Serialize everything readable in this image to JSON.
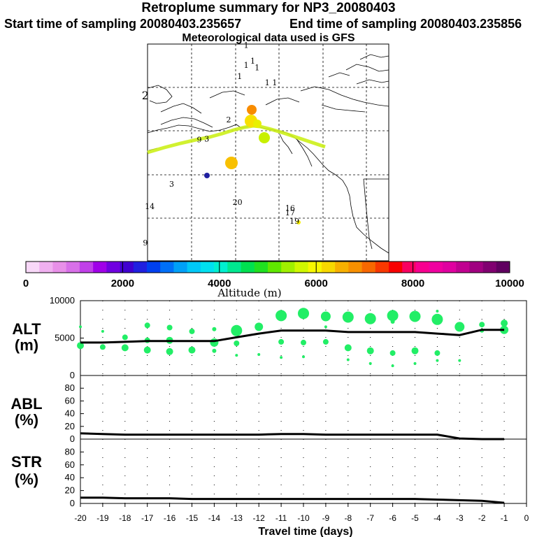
{
  "header": {
    "title": "Retroplume summary for NP3_20080403",
    "start_label": "Start time of sampling 20080403.235657",
    "end_label": "End time of sampling 20080403.235856",
    "met_label": "Meteorological data used is GFS"
  },
  "colors": {
    "altitude_scale": [
      "#f8d8f8",
      "#f0b0f0",
      "#e890e8",
      "#d870e8",
      "#c040e8",
      "#a000e8",
      "#7000e0",
      "#4000d0",
      "#2020e0",
      "#0040f0",
      "#0070f8",
      "#00a0f8",
      "#00c8f8",
      "#00e0f0",
      "#00f0d0",
      "#00e890",
      "#00e050",
      "#20e020",
      "#60e800",
      "#a0f000",
      "#d0f800",
      "#f8f800",
      "#f8d800",
      "#f8b000",
      "#f89000",
      "#f86800",
      "#f83800",
      "#f80000",
      "#f80060",
      "#f80090",
      "#f000a0",
      "#e000a0",
      "#c00090",
      "#a00080",
      "#800070",
      "#600060"
    ],
    "alt_dot": "#22ee66",
    "line": "#000000"
  },
  "colorbar": {
    "ticks": [
      "0",
      "2000",
      "4000",
      "6000",
      "8000",
      "10000"
    ],
    "label": "Altitude (m)"
  },
  "map": {
    "plume_labels": [
      {
        "text": "1",
        "lon": -147.5,
        "lat": 64.8
      },
      {
        "text": "1",
        "lon": -146.0,
        "lat": 63.0
      },
      {
        "text": "1",
        "lon": -147.5,
        "lat": 62.5
      },
      {
        "text": "1",
        "lon": -145.0,
        "lat": 62.2
      },
      {
        "text": "1",
        "lon": -142.7,
        "lat": 60.5
      },
      {
        "text": "1",
        "lon": -141.0,
        "lat": 60.5
      },
      {
        "text": "1",
        "lon": -149.0,
        "lat": 61.2
      },
      {
        "text": "2",
        "lon": -170.5,
        "lat": 59.0
      },
      {
        "text": "2",
        "lon": -151.5,
        "lat": 56.2
      },
      {
        "text": "3",
        "lon": -156.5,
        "lat": 54.0
      },
      {
        "text": "3",
        "lon": -164.5,
        "lat": 48.8
      },
      {
        "text": "9",
        "lon": -158.2,
        "lat": 53.9
      },
      {
        "text": "14",
        "lon": -169.5,
        "lat": 46.2
      },
      {
        "text": "9",
        "lon": -170.5,
        "lat": 42.0
      },
      {
        "text": "20",
        "lon": -149.5,
        "lat": 46.7
      },
      {
        "text": "16",
        "lon": -137.5,
        "lat": 46.0
      },
      {
        "text": "17",
        "lon": -137.5,
        "lat": 45.5
      },
      {
        "text": "19",
        "lon": -136.5,
        "lat": 44.5
      }
    ]
  },
  "chart_data": [
    {
      "type": "line",
      "panel": "ALT",
      "ylabel_line1": "ALT",
      "ylabel_line2": "(m)",
      "ylim": [
        0,
        10000
      ],
      "yticks": [
        "0",
        "5000",
        "10000"
      ],
      "x": [
        -20,
        -19,
        -18,
        -17,
        -16,
        -15,
        -14,
        -13,
        -12,
        -11,
        -10,
        -9,
        -8,
        -7,
        -6,
        -5,
        -4,
        -3,
        -2,
        -1
      ],
      "values": [
        4400,
        4400,
        4500,
        4600,
        4600,
        4600,
        4600,
        5100,
        5600,
        6000,
        6000,
        6000,
        5800,
        5800,
        5800,
        5800,
        5600,
        5400,
        6100,
        6100
      ],
      "scatter": [
        {
          "x": -20,
          "y": 6500,
          "s": 2
        },
        {
          "x": -20,
          "y": 4000,
          "s": 5
        },
        {
          "x": -19,
          "y": 5900,
          "s": 2
        },
        {
          "x": -19,
          "y": 3800,
          "s": 4
        },
        {
          "x": -18,
          "y": 5100,
          "s": 4
        },
        {
          "x": -18,
          "y": 3700,
          "s": 5
        },
        {
          "x": -17,
          "y": 6700,
          "s": 4
        },
        {
          "x": -17,
          "y": 4700,
          "s": 4
        },
        {
          "x": -17,
          "y": 3400,
          "s": 5
        },
        {
          "x": -16,
          "y": 6400,
          "s": 4
        },
        {
          "x": -16,
          "y": 4700,
          "s": 5
        },
        {
          "x": -16,
          "y": 3200,
          "s": 5
        },
        {
          "x": -15,
          "y": 5900,
          "s": 4
        },
        {
          "x": -15,
          "y": 3400,
          "s": 5
        },
        {
          "x": -14,
          "y": 6200,
          "s": 3
        },
        {
          "x": -14,
          "y": 4400,
          "s": 6
        },
        {
          "x": -14,
          "y": 3300,
          "s": 3
        },
        {
          "x": -13,
          "y": 6000,
          "s": 8
        },
        {
          "x": -13,
          "y": 4300,
          "s": 4
        },
        {
          "x": -13,
          "y": 2700,
          "s": 2
        },
        {
          "x": -12,
          "y": 6500,
          "s": 6
        },
        {
          "x": -12,
          "y": 2800,
          "s": 2
        },
        {
          "x": -11,
          "y": 8000,
          "s": 8
        },
        {
          "x": -11,
          "y": 4500,
          "s": 4
        },
        {
          "x": -11,
          "y": 2400,
          "s": 2
        },
        {
          "x": -10,
          "y": 8300,
          "s": 8
        },
        {
          "x": -10,
          "y": 4400,
          "s": 4
        },
        {
          "x": -10,
          "y": 2500,
          "s": 2
        },
        {
          "x": -9,
          "y": 7900,
          "s": 7
        },
        {
          "x": -9,
          "y": 4500,
          "s": 4
        },
        {
          "x": -9,
          "y": 6500,
          "s": 2
        },
        {
          "x": -8,
          "y": 7800,
          "s": 8
        },
        {
          "x": -8,
          "y": 3700,
          "s": 5
        },
        {
          "x": -8,
          "y": 2100,
          "s": 2
        },
        {
          "x": -7,
          "y": 7600,
          "s": 8
        },
        {
          "x": -7,
          "y": 3300,
          "s": 5
        },
        {
          "x": -7,
          "y": 1600,
          "s": 2
        },
        {
          "x": -6,
          "y": 8000,
          "s": 8
        },
        {
          "x": -6,
          "y": 3000,
          "s": 4
        },
        {
          "x": -6,
          "y": 1300,
          "s": 2
        },
        {
          "x": -6,
          "y": 7200,
          "s": 3
        },
        {
          "x": -5,
          "y": 7900,
          "s": 8
        },
        {
          "x": -5,
          "y": 3300,
          "s": 5
        },
        {
          "x": -5,
          "y": 1600,
          "s": 2
        },
        {
          "x": -4,
          "y": 7500,
          "s": 8
        },
        {
          "x": -4,
          "y": 3000,
          "s": 4
        },
        {
          "x": -4,
          "y": 2000,
          "s": 2
        },
        {
          "x": -4,
          "y": 8600,
          "s": 2
        },
        {
          "x": -3,
          "y": 6500,
          "s": 7
        },
        {
          "x": -3,
          "y": 2000,
          "s": 2
        },
        {
          "x": -2,
          "y": 6800,
          "s": 4
        },
        {
          "x": -2,
          "y": 6000,
          "s": 3
        },
        {
          "x": -1,
          "y": 7000,
          "s": 5
        },
        {
          "x": -1,
          "y": 6100,
          "s": 6
        }
      ]
    },
    {
      "type": "line",
      "panel": "ABL",
      "ylabel_line1": "ABL",
      "ylabel_line2": "(%)",
      "ylim": [
        0,
        100
      ],
      "yticks": [
        "0",
        "20",
        "40",
        "60",
        "80"
      ],
      "x": [
        -20,
        -19,
        -18,
        -17,
        -16,
        -15,
        -14,
        -13,
        -12,
        -11,
        -10,
        -9,
        -8,
        -7,
        -6,
        -5,
        -4,
        -3,
        -2,
        -1
      ],
      "values": [
        9,
        8,
        7,
        7,
        7,
        7,
        7,
        7,
        7,
        8,
        8,
        7,
        7,
        7,
        7,
        7,
        7,
        1,
        0,
        0
      ]
    },
    {
      "type": "line",
      "panel": "STR",
      "ylabel_line1": "STR",
      "ylabel_line2": "(%)",
      "ylim": [
        0,
        100
      ],
      "yticks": [
        "0",
        "20",
        "40",
        "60",
        "80"
      ],
      "x": [
        -20,
        -19,
        -18,
        -17,
        -16,
        -15,
        -14,
        -13,
        -12,
        -11,
        -10,
        -9,
        -8,
        -7,
        -6,
        -5,
        -4,
        -3,
        -2,
        -1
      ],
      "values": [
        9,
        9,
        8,
        8,
        8,
        7,
        7,
        7,
        7,
        7,
        7,
        7,
        7,
        7,
        7,
        7,
        6,
        5,
        4,
        1
      ]
    }
  ],
  "xaxis": {
    "ticks": [
      "-20",
      "-19",
      "-18",
      "-17",
      "-16",
      "-15",
      "-14",
      "-13",
      "-12",
      "-11",
      "-10",
      "-9",
      "-8",
      "-7",
      "-6",
      "-5",
      "-4",
      "-3",
      "-2",
      "-1",
      "0"
    ],
    "label": "Travel time (days)"
  }
}
